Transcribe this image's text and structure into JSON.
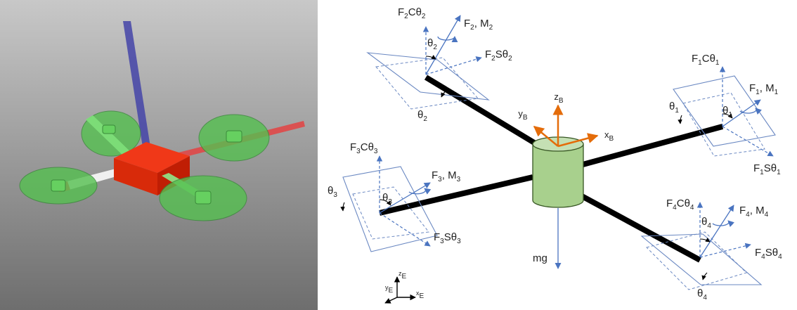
{
  "colors": {
    "blue": "#4a74c0",
    "orange": "#e46c0a",
    "arm": "#000000",
    "body": "#a8d08d",
    "body_stroke": "#375623",
    "plane": "#6a88c2",
    "render_body": "#e02000",
    "render_prop": "#55c050",
    "render_z_axis": "#4040a0",
    "render_x_axis": "#e04040"
  },
  "diagram": {
    "rotor2": {
      "vertical": [
        {
          "t": "F"
        },
        {
          "t": "2",
          "s": 1
        },
        {
          "t": "Cθ"
        },
        {
          "t": "2",
          "s": 1
        }
      ],
      "thrust": [
        {
          "t": "F"
        },
        {
          "t": "2",
          "s": 1
        },
        {
          "t": ", M"
        },
        {
          "t": "2",
          "s": 1
        }
      ],
      "horizontal": [
        {
          "t": "F"
        },
        {
          "t": "2",
          "s": 1
        },
        {
          "t": "Sθ"
        },
        {
          "t": "2",
          "s": 1
        }
      ],
      "angle_a": [
        {
          "t": "θ"
        },
        {
          "t": "2",
          "s": 1
        }
      ],
      "angle_b": [
        {
          "t": "θ"
        },
        {
          "t": "2",
          "s": 1
        }
      ]
    },
    "rotor1": {
      "vertical": [
        {
          "t": "F"
        },
        {
          "t": "1",
          "s": 1
        },
        {
          "t": "Cθ"
        },
        {
          "t": "1",
          "s": 1
        }
      ],
      "thrust": [
        {
          "t": "F"
        },
        {
          "t": "1",
          "s": 1
        },
        {
          "t": ", M"
        },
        {
          "t": "1",
          "s": 1
        }
      ],
      "horizontal": [
        {
          "t": "F"
        },
        {
          "t": "1",
          "s": 1
        },
        {
          "t": "Sθ"
        },
        {
          "t": "1",
          "s": 1
        }
      ],
      "angle_a": [
        {
          "t": "θ"
        },
        {
          "t": "1",
          "s": 1
        }
      ],
      "angle_b": [
        {
          "t": "θ"
        },
        {
          "t": "1",
          "s": 1
        }
      ]
    },
    "rotor3": {
      "vertical": [
        {
          "t": "F"
        },
        {
          "t": "3",
          "s": 1
        },
        {
          "t": "Cθ"
        },
        {
          "t": "3",
          "s": 1
        }
      ],
      "thrust": [
        {
          "t": "F"
        },
        {
          "t": "3",
          "s": 1
        },
        {
          "t": ", M"
        },
        {
          "t": "3",
          "s": 1
        }
      ],
      "horizontal": [
        {
          "t": "F"
        },
        {
          "t": "3",
          "s": 1
        },
        {
          "t": "Sθ"
        },
        {
          "t": "3",
          "s": 1
        }
      ],
      "angle_a": [
        {
          "t": "θ"
        },
        {
          "t": "3",
          "s": 1
        }
      ],
      "angle_b": [
        {
          "t": "θ"
        },
        {
          "t": "3",
          "s": 1
        }
      ]
    },
    "rotor4": {
      "vertical": [
        {
          "t": "F"
        },
        {
          "t": "4",
          "s": 1
        },
        {
          "t": "Cθ"
        },
        {
          "t": "4",
          "s": 1
        }
      ],
      "thrust": [
        {
          "t": "F"
        },
        {
          "t": "4",
          "s": 1
        },
        {
          "t": ", M"
        },
        {
          "t": "4",
          "s": 1
        }
      ],
      "horizontal": [
        {
          "t": "F"
        },
        {
          "t": "4",
          "s": 1
        },
        {
          "t": "Sθ"
        },
        {
          "t": "4",
          "s": 1
        }
      ],
      "angle_a": [
        {
          "t": "θ"
        },
        {
          "t": "4",
          "s": 1
        }
      ],
      "angle_b": [
        {
          "t": "θ"
        },
        {
          "t": "4",
          "s": 1
        }
      ]
    },
    "body_frame": {
      "z": [
        {
          "t": "z"
        },
        {
          "t": "B",
          "s": 1
        }
      ],
      "y": [
        {
          "t": "y"
        },
        {
          "t": "B",
          "s": 1
        }
      ],
      "x": [
        {
          "t": "x"
        },
        {
          "t": "B",
          "s": 1
        }
      ]
    },
    "weight": [
      {
        "t": "mg"
      }
    ],
    "earth_frame": {
      "z": [
        {
          "t": "z"
        },
        {
          "t": "E",
          "s": 1
        }
      ],
      "y": [
        {
          "t": "y"
        },
        {
          "t": "E",
          "s": 1
        }
      ],
      "x": [
        {
          "t": "x"
        },
        {
          "t": "E",
          "s": 1
        }
      ]
    }
  }
}
